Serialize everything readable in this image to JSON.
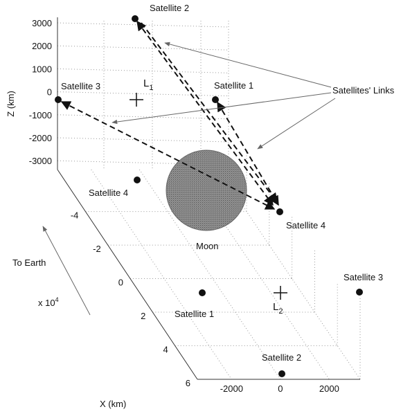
{
  "axes": {
    "z_title": "Z (km)",
    "x_title": "X (km)",
    "z_ticks": [
      3000,
      2000,
      1000,
      0,
      -1000,
      -2000,
      -3000
    ],
    "x_ticks": [
      -4,
      -2,
      0,
      2,
      4,
      6
    ],
    "x_scale": {
      "base": "x 10",
      "exponent": "4"
    },
    "y_ticks": [
      -2000,
      0,
      2000
    ]
  },
  "points": [
    {
      "label": "Satellite 2"
    },
    {
      "label": "Satellite 1"
    },
    {
      "label": "Satellite 3"
    },
    {
      "label": "Satellite 4"
    },
    {
      "label": "Satellite 4"
    },
    {
      "label": "Satellite 1"
    },
    {
      "label": "Satellite 3"
    },
    {
      "label": "Satellite 2"
    }
  ],
  "lagrange": [
    {
      "label": "L",
      "sub": "1"
    },
    {
      "label": "L",
      "sub": "2"
    }
  ],
  "moon": "Moon",
  "links_label": "Satellites' Links",
  "earth_label": "To Earth"
}
